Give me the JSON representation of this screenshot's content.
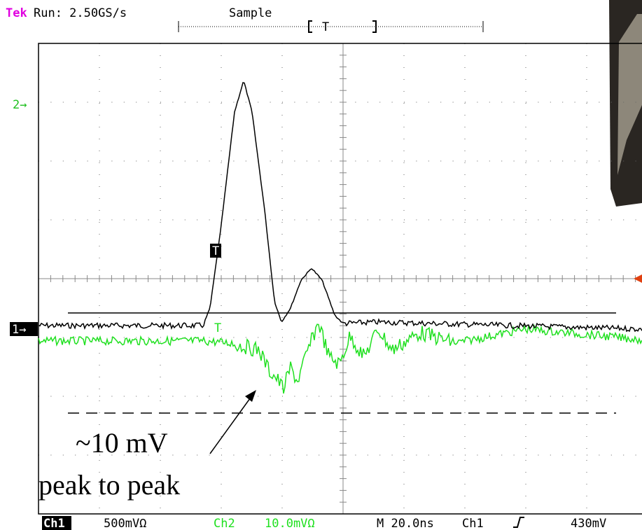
{
  "header": {
    "brand": "Tek",
    "run": "Run: 2.50GS/s",
    "mode": "Sample",
    "record_trigger": "T"
  },
  "markers": {
    "ch2": "2→",
    "ch1": "1→",
    "trigger": "T",
    "ch2_trigger": "T"
  },
  "annotation": {
    "amplitude": "~10 mV",
    "label": "peak to peak"
  },
  "status": {
    "ch1": "Ch1",
    "ch1_scale": "500mVΩ",
    "ch2": "Ch2",
    "ch2_scale": "10.0mVΩ",
    "timebase": "M 20.0ns",
    "trigger_source": "Ch1",
    "trigger_level": "430mV"
  }
}
